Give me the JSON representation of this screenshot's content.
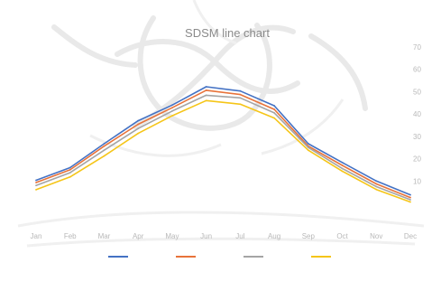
{
  "chart_data": {
    "type": "line",
    "title": "SDSM line chart",
    "xlabel": "",
    "ylabel": "",
    "categories": [
      "Jan",
      "Feb",
      "Mar",
      "Apr",
      "May",
      "Jun",
      "Jul",
      "Aug",
      "Sep",
      "Oct",
      "Nov",
      "Dec"
    ],
    "x_tick_labels": [
      "Jan",
      "Feb",
      "Mar",
      "Apr",
      "May",
      "Jun",
      "Jul",
      "Aug",
      "Sep",
      "Oct",
      "Nov",
      "Dec"
    ],
    "y_tick_labels": [
      "10",
      "20",
      "30",
      "40",
      "50",
      "60",
      "70"
    ],
    "ylim": [
      0,
      70
    ],
    "grid": false,
    "legend_position": "bottom",
    "series": [
      {
        "name": "",
        "color": "#4472c4",
        "values": [
          10.3,
          16.0,
          26.7,
          37.0,
          44.0,
          52.2,
          50.3,
          43.7,
          26.7,
          18.3,
          10.0,
          3.8
        ]
      },
      {
        "name": "",
        "color": "#e8733a",
        "values": [
          9.3,
          15.0,
          25.6,
          35.4,
          42.8,
          50.6,
          48.7,
          42.1,
          25.6,
          17.0,
          8.7,
          2.6
        ]
      },
      {
        "name": "",
        "color": "#a5a5a5",
        "values": [
          8.0,
          13.7,
          23.8,
          33.5,
          41.3,
          48.4,
          47.2,
          40.5,
          25.0,
          15.6,
          7.5,
          1.6
        ]
      },
      {
        "name": "",
        "color": "#f5c518",
        "values": [
          6.1,
          11.8,
          21.2,
          31.3,
          39.2,
          46.0,
          44.4,
          38.2,
          23.8,
          14.4,
          6.2,
          0.6
        ]
      }
    ]
  }
}
